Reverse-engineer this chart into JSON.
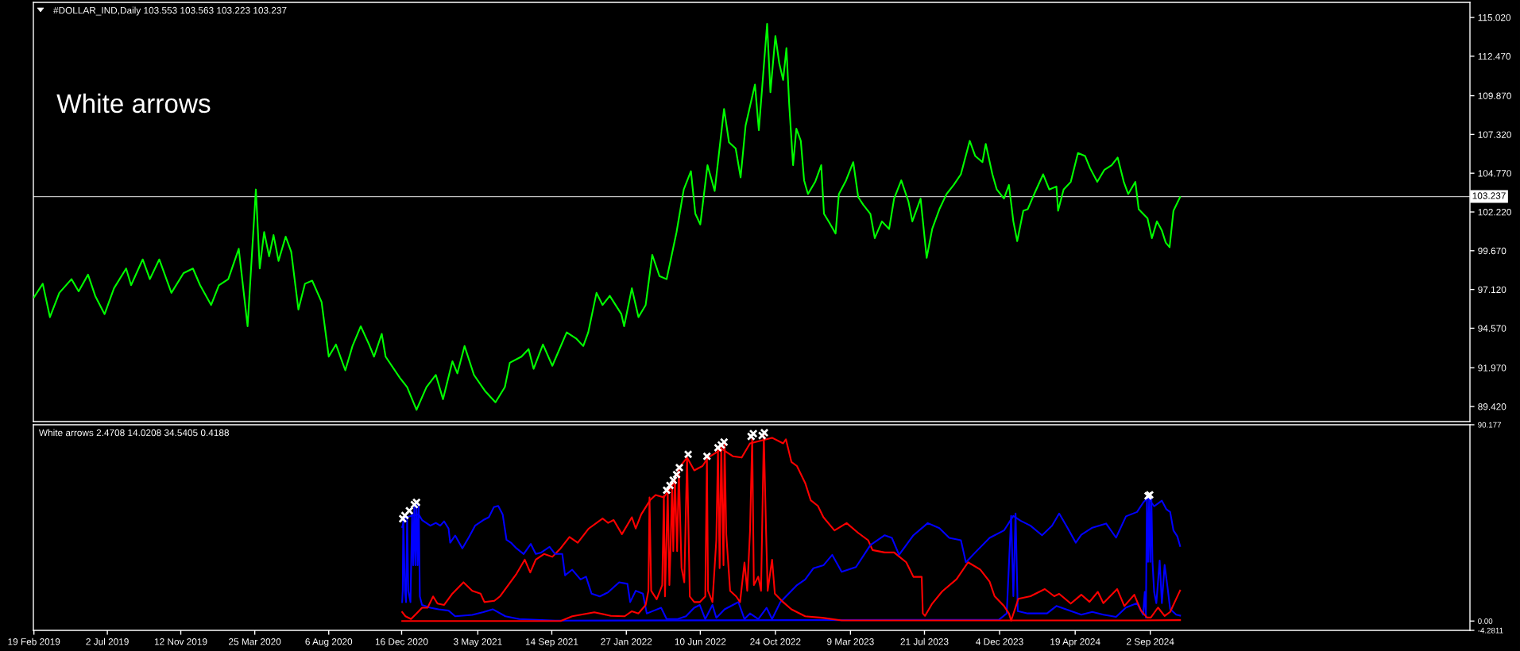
{
  "chart_data": [
    {
      "type": "line",
      "title": "#DOLLAR_IND,Daily 103.553 103.563 103.223 103.237",
      "annotations": [
        "White arrows"
      ],
      "x": [
        "2019-02-19",
        "2019-03-07",
        "2019-03-20",
        "2019-04-06",
        "2019-04-28",
        "2019-05-11",
        "2019-05-28",
        "2019-06-10",
        "2019-06-27",
        "2019-07-14",
        "2019-08-05",
        "2019-08-14",
        "2019-09-04",
        "2019-09-17",
        "2019-10-04",
        "2019-10-26",
        "2019-11-17",
        "2019-12-04",
        "2019-12-17",
        "2020-01-06",
        "2020-01-20",
        "2020-02-06",
        "2020-02-25",
        "2020-03-12",
        "2020-03-18",
        "2020-03-27",
        "2020-04-03",
        "2020-04-11",
        "2020-04-20",
        "2020-04-28",
        "2020-05-07",
        "2020-05-20",
        "2020-05-30",
        "2020-06-12",
        "2020-06-24",
        "2020-07-07",
        "2020-07-24",
        "2020-08-06",
        "2020-08-19",
        "2020-09-05",
        "2020-09-18",
        "2020-10-03",
        "2020-10-18",
        "2020-10-27",
        "2020-11-10",
        "2020-11-17",
        "2020-12-13",
        "2020-12-26",
        "2021-01-12",
        "2021-01-30",
        "2021-02-16",
        "2021-03-01",
        "2021-03-18",
        "2021-03-27",
        "2021-04-09",
        "2021-04-26",
        "2021-05-17",
        "2021-06-04",
        "2021-06-21",
        "2021-06-30",
        "2021-07-21",
        "2021-08-03",
        "2021-08-12",
        "2021-08-29",
        "2021-09-15",
        "2021-10-11",
        "2021-10-28",
        "2021-11-10",
        "2021-11-19",
        "2021-12-04",
        "2021-12-15",
        "2021-12-28",
        "2022-01-18",
        "2022-01-23",
        "2022-02-06",
        "2022-02-18",
        "2022-03-03",
        "2022-03-15",
        "2022-03-28",
        "2022-04-10",
        "2022-04-28",
        "2022-05-11",
        "2022-05-24",
        "2022-06-01",
        "2022-06-10",
        "2022-06-23",
        "2022-07-06",
        "2022-07-23",
        "2022-08-01",
        "2022-08-13",
        "2022-08-22",
        "2022-08-31",
        "2022-09-17",
        "2022-09-24",
        "2022-10-09",
        "2022-10-15",
        "2022-10-24",
        "2022-10-31",
        "2022-11-07",
        "2022-11-13",
        "2022-11-18",
        "2022-11-25",
        "2022-12-01",
        "2022-12-09",
        "2022-12-15",
        "2022-12-22",
        "2023-01-04",
        "2023-01-15",
        "2023-01-20",
        "2023-01-30",
        "2023-02-10",
        "2023-02-16",
        "2023-03-01",
        "2023-03-14",
        "2023-03-23",
        "2023-04-01",
        "2023-04-14",
        "2023-04-22",
        "2023-05-05",
        "2023-05-18",
        "2023-05-27",
        "2023-06-09",
        "2023-06-22",
        "2023-06-29",
        "2023-07-14",
        "2023-07-25",
        "2023-08-04",
        "2023-08-17",
        "2023-08-30",
        "2023-09-12",
        "2023-09-25",
        "2023-10-11",
        "2023-10-21",
        "2023-11-03",
        "2023-11-09",
        "2023-11-21",
        "2023-11-29",
        "2023-12-12",
        "2023-12-21",
        "2023-12-29",
        "2024-01-05",
        "2024-01-16",
        "2024-01-24",
        "2024-02-06",
        "2024-02-21",
        "2024-03-03",
        "2024-03-16",
        "2024-03-19",
        "2024-03-29",
        "2024-04-11",
        "2024-04-24",
        "2024-05-07",
        "2024-05-16",
        "2024-05-29",
        "2024-06-11",
        "2024-06-24",
        "2024-07-05",
        "2024-07-16",
        "2024-07-24",
        "2024-08-06",
        "2024-08-12",
        "2024-08-28",
        "2024-09-05",
        "2024-09-14",
        "2024-09-23",
        "2024-09-30",
        "2024-10-07",
        "2024-10-14",
        "2024-10-26"
      ],
      "series": [
        {
          "color": "#00ff00",
          "values": [
            96.6,
            97.5,
            95.3,
            96.9,
            97.8,
            97.0,
            98.1,
            96.7,
            95.5,
            97.2,
            98.5,
            97.4,
            99.1,
            97.8,
            99.1,
            96.9,
            98.2,
            98.5,
            97.4,
            96.1,
            97.4,
            97.8,
            99.8,
            94.7,
            98.3,
            103.7,
            98.5,
            100.9,
            99.3,
            100.7,
            99.0,
            100.6,
            99.6,
            95.8,
            97.5,
            97.7,
            96.3,
            92.7,
            93.5,
            91.8,
            93.4,
            94.7,
            93.5,
            92.7,
            94.2,
            92.7,
            91.3,
            90.7,
            89.2,
            90.7,
            91.5,
            89.9,
            92.4,
            91.6,
            93.4,
            91.5,
            90.4,
            89.7,
            90.7,
            92.3,
            92.7,
            93.2,
            91.9,
            93.5,
            92.1,
            94.3,
            93.9,
            93.4,
            94.3,
            96.9,
            96.1,
            96.7,
            95.5,
            94.7,
            97.2,
            95.3,
            96.1,
            99.4,
            98.0,
            97.8,
            100.9,
            103.7,
            104.9,
            102.1,
            101.4,
            105.3,
            103.6,
            109.0,
            106.8,
            106.4,
            104.5,
            107.9,
            110.6,
            107.6,
            114.6,
            110.1,
            113.8,
            112.0,
            110.9,
            113.0,
            109.3,
            105.3,
            107.7,
            106.9,
            104.3,
            103.4,
            104.2,
            105.3,
            102.1,
            101.5,
            100.8,
            103.4,
            104.3,
            105.5,
            103.2,
            102.7,
            102.1,
            100.5,
            101.6,
            101.1,
            103.1,
            104.3,
            102.9,
            101.6,
            103.1,
            99.2,
            101.1,
            102.4,
            103.4,
            104.0,
            104.7,
            106.9,
            105.9,
            105.5,
            106.7,
            104.7,
            103.7,
            103.1,
            104.0,
            101.6,
            100.3,
            102.3,
            102.4,
            103.5,
            104.7,
            103.7,
            103.9,
            102.3,
            103.7,
            104.2,
            106.1,
            105.9,
            105.1,
            104.2,
            105.0,
            105.3,
            105.8,
            104.2,
            103.4,
            104.2,
            102.4,
            101.8,
            100.5,
            101.6,
            101.0,
            100.2,
            99.9,
            102.3,
            103.2
          ]
        }
      ],
      "xlim": [
        "2019-02-18",
        "2026-04-04"
      ],
      "ylim": [
        88.43,
        116.01
      ],
      "yticks": [
        {
          "value": 89.42,
          "label": "89.420"
        },
        {
          "value": 91.97,
          "label": "91.970"
        },
        {
          "value": 94.57,
          "label": "94.570"
        },
        {
          "value": 97.12,
          "label": "97.120"
        },
        {
          "value": 99.67,
          "label": "99.670"
        },
        {
          "value": 102.22,
          "label": "102.220"
        },
        {
          "value": 104.77,
          "label": "104.770"
        },
        {
          "value": 107.32,
          "label": "107.320"
        },
        {
          "value": 109.87,
          "label": "109.870"
        },
        {
          "value": 112.47,
          "label": "112.470"
        },
        {
          "value": 115.02,
          "label": "115.020"
        }
      ],
      "ref_lines": [
        {
          "axis": "y",
          "value": 103.237,
          "label": "103.237",
          "color": "#c0c0c0"
        }
      ],
      "tick_labels": "y",
      "marker": "none",
      "line_style": "solid"
    },
    {
      "type": "line",
      "title": "White arrows 2.4708 14.0208 34.5405 0.4188",
      "series": [
        {
          "color": "#0000ff",
          "x": [
            "2020-12-17",
            "2020-12-18",
            "2020-12-19",
            "2020-12-22",
            "2020-12-24",
            "2020-12-26",
            "2020-12-28",
            "2021-01-01",
            "2021-01-04",
            "2021-01-06",
            "2021-01-08",
            "2021-01-10",
            "2021-01-12",
            "2021-01-14",
            "2021-01-16",
            "2021-01-18",
            "2021-01-22",
            "2021-02-06",
            "2021-02-21",
            "2021-03-11",
            "2021-03-23",
            "2021-04-23",
            "2021-05-13",
            "2021-05-30",
            "2021-06-22",
            "2021-07-17",
            "2021-09-20",
            "2023-12-03",
            "2023-12-17",
            "2023-12-25",
            "2023-12-29",
            "2024-01-02",
            "2024-01-06",
            "2024-01-24",
            "2024-02-28",
            "2024-03-16",
            "2024-04-30",
            "2024-05-20",
            "2024-06-09",
            "2024-07-02",
            "2024-07-20",
            "2024-08-09",
            "2024-08-20",
            "2024-08-23",
            "2024-08-25",
            "2024-08-27",
            "2024-08-29",
            "2024-08-31",
            "2024-09-02",
            "2024-09-04",
            "2024-09-06",
            "2024-09-09",
            "2024-09-13",
            "2024-09-19",
            "2024-09-23",
            "2024-09-28",
            "2024-10-03",
            "2024-10-08",
            "2024-10-19",
            "2024-10-26"
          ],
          "values": [
            8.7,
            13.9,
            47.7,
            13.9,
            8.7,
            47.7,
            13.9,
            8.7,
            49.0,
            25.6,
            52.9,
            25.6,
            54.2,
            25.6,
            52.9,
            11.3,
            7.4,
            6.1,
            5.4,
            4.8,
            2.2,
            2.8,
            4.1,
            5.4,
            2.2,
            0.9,
            0.2,
            0.6,
            3.5,
            48.3,
            11.4,
            49.4,
            4.6,
            3.5,
            3.5,
            6.9,
            2.9,
            4.2,
            2.9,
            1.9,
            6.2,
            8.2,
            2.9,
            13.4,
            1.6,
            56.6,
            27.2,
            57.3,
            27.2,
            56.6,
            27.2,
            13.4,
            8.2,
            27.8,
            8.2,
            25.8,
            16.0,
            5.5,
            2.9,
            2.5
          ]
        },
        {
          "color": "#ff0000",
          "x": [
            "2020-12-17",
            "2020-12-23",
            "2021-01-02",
            "2021-01-12",
            "2021-01-22",
            "2021-02-01",
            "2021-02-11",
            "2021-02-19",
            "2021-03-03",
            "2021-03-18",
            "2021-04-07",
            "2021-04-23",
            "2021-05-08",
            "2021-05-15",
            "2021-06-02",
            "2021-06-12",
            "2021-06-27",
            "2021-07-12",
            "2021-07-27",
            "2021-08-06",
            "2021-08-16",
            "2021-08-31",
            "2021-09-15",
            "2021-09-30",
            "2021-10-16",
            "2021-10-31",
            "2021-11-20",
            "2021-12-15",
            "2021-12-25",
            "2022-01-04",
            "2022-01-19",
            "2022-02-06",
            "2022-02-13",
            "2022-02-23",
            "2022-03-11",
            "2022-03-21",
            "2022-04-05",
            "2022-04-10",
            "2022-04-20",
            "2022-05-05",
            "2022-05-17",
            "2022-05-30",
            "2022-06-14",
            "2022-06-24",
            "2022-07-19",
            "2022-08-08",
            "2022-08-24",
            "2022-09-08",
            "2022-09-28",
            "2022-10-18",
            "2022-11-07",
            "2022-11-12",
            "2022-11-22",
            "2022-12-02",
            "2022-12-17",
            "2022-12-27",
            "2023-01-09",
            "2023-01-19",
            "2023-02-08",
            "2023-03-02",
            "2023-03-23",
            "2023-04-10",
            "2023-04-18",
            "2023-05-10",
            "2023-05-27",
            "2023-06-18",
            "2023-07-01",
            "2023-07-16",
            "2023-07-18",
            "2023-07-22",
            "2023-08-04",
            "2023-08-22",
            "2023-09-17",
            "2023-10-08",
            "2023-10-30",
            "2023-11-16",
            "2023-11-25",
            "2023-12-12",
            "2023-12-21",
            "2023-12-25",
            "2024-01-07",
            "2024-01-29",
            "2024-02-24",
            "2024-03-12",
            "2024-03-21",
            "2024-04-11",
            "2024-04-30",
            "2024-05-15",
            "2024-05-30",
            "2024-06-09",
            "2024-07-04",
            "2024-07-17",
            "2024-08-04",
            "2024-08-16",
            "2024-08-27",
            "2024-09-03",
            "2024-09-16",
            "2024-09-28",
            "2024-10-08",
            "2024-10-26"
          ],
          "values": [
            4.1,
            2.2,
            0.9,
            3.5,
            6.1,
            6.1,
            11.3,
            8.0,
            7.4,
            12.6,
            17.8,
            13.9,
            12.6,
            8.7,
            9.3,
            11.3,
            16.5,
            21.7,
            28.2,
            22.3,
            28.2,
            30.8,
            29.5,
            33.4,
            38.6,
            36.0,
            42.5,
            47.1,
            45.1,
            46.4,
            39.9,
            47.7,
            42.5,
            49.0,
            55.5,
            57.9,
            56.8,
            58.8,
            62.1,
            71.2,
            75.1,
            69.2,
            71.2,
            75.1,
            79.0,
            75.7,
            75.1,
            81.6,
            82.9,
            84.2,
            81.6,
            83.5,
            73.1,
            71.2,
            63.4,
            55.5,
            52.9,
            47.7,
            41.6,
            45.0,
            40.5,
            37.1,
            32.6,
            31.5,
            31.5,
            27.0,
            20.3,
            20.3,
            3.5,
            2.4,
            8.0,
            13.6,
            19.2,
            27.0,
            23.7,
            18.1,
            11.4,
            6.9,
            3.5,
            0.2,
            10.2,
            11.4,
            14.7,
            11.4,
            12.5,
            8.0,
            12.1,
            8.8,
            13.4,
            8.2,
            14.7,
            6.9,
            12.1,
            4.9,
            1.6,
            1.6,
            6.2,
            2.3,
            4.2,
            14.0
          ]
        },
        {
          "color": "#0000ff",
          "x": [
            "2020-12-17",
            "2020-12-23",
            "2021-01-16",
            "2021-01-22",
            "2021-02-06",
            "2021-02-16",
            "2021-02-24",
            "2021-03-03",
            "2021-03-11",
            "2021-03-14",
            "2021-03-23",
            "2021-04-05",
            "2021-04-17",
            "2021-04-28",
            "2021-05-13",
            "2021-05-23",
            "2021-06-01",
            "2021-06-09",
            "2021-06-17",
            "2021-06-24",
            "2021-07-02",
            "2021-07-12",
            "2021-07-25",
            "2021-08-07",
            "2021-08-16",
            "2021-08-26",
            "2021-09-10",
            "2021-09-20",
            "2021-10-03",
            "2021-10-08",
            "2021-10-21",
            "2021-11-05",
            "2021-11-15",
            "2021-11-25",
            "2021-12-10",
            "2021-12-25",
            "2022-01-14",
            "2022-01-29",
            "2022-02-03",
            "2022-02-13",
            "2022-02-26",
            "2022-03-05",
            "2022-03-18",
            "2022-03-31",
            "2022-04-10",
            "2022-04-30",
            "2022-05-15",
            "2022-05-30",
            "2022-06-09",
            "2022-06-19",
            "2022-07-02",
            "2022-07-09",
            "2022-07-24",
            "2022-08-08",
            "2022-08-18",
            "2022-08-29",
            "2022-09-08",
            "2022-09-23",
            "2022-10-08",
            "2022-10-18",
            "2022-11-02",
            "2022-11-17",
            "2022-12-02",
            "2022-12-17",
            "2023-01-01",
            "2023-01-19",
            "2023-02-04",
            "2023-02-21",
            "2023-03-19",
            "2023-04-14",
            "2023-05-10",
            "2023-05-23",
            "2023-06-05",
            "2023-07-01",
            "2023-07-27",
            "2023-08-17",
            "2023-09-04",
            "2023-09-25",
            "2023-10-04",
            "2023-10-21",
            "2023-11-16",
            "2023-12-12",
            "2023-12-29",
            "2024-01-11",
            "2024-01-29",
            "2024-02-19",
            "2024-03-08",
            "2024-03-21",
            "2024-04-03",
            "2024-04-20",
            "2024-04-30",
            "2024-05-20",
            "2024-06-14",
            "2024-07-02",
            "2024-07-20",
            "2024-08-09",
            "2024-08-21",
            "2024-08-29",
            "2024-09-09",
            "2024-09-23",
            "2024-10-01",
            "2024-10-08",
            "2024-10-14",
            "2024-10-21",
            "2024-10-26"
          ],
          "values": [
            43.2,
            47.7,
            49.0,
            46.4,
            43.8,
            45.1,
            43.8,
            45.8,
            42.5,
            36.0,
            39.3,
            33.4,
            38.6,
            43.8,
            46.4,
            47.7,
            52.3,
            52.9,
            49.0,
            37.3,
            36.0,
            33.4,
            30.8,
            35.4,
            30.8,
            31.5,
            34.1,
            30.8,
            30.8,
            21.0,
            23.6,
            19.1,
            20.4,
            12.6,
            11.3,
            13.2,
            17.8,
            17.1,
            8.7,
            13.9,
            12.6,
            3.5,
            4.8,
            6.1,
            0.9,
            0.9,
            2.2,
            6.1,
            7.4,
            0.9,
            7.4,
            1.5,
            5.4,
            7.4,
            8.7,
            0.9,
            3.5,
            0.9,
            6.1,
            0.9,
            8.7,
            12.6,
            16.5,
            19.1,
            24.3,
            25.6,
            30.4,
            22.6,
            24.8,
            34.9,
            39.4,
            38.2,
            30.4,
            39.4,
            45.0,
            42.7,
            38.2,
            37.1,
            27.0,
            31.5,
            38.2,
            41.6,
            48.3,
            46.1,
            43.8,
            39.4,
            43.8,
            49.4,
            43.8,
            36.0,
            39.6,
            42.9,
            44.8,
            38.3,
            48.1,
            50.1,
            54.7,
            56.6,
            52.7,
            55.3,
            51.4,
            50.1,
            41.6,
            38.9,
            34.5
          ]
        },
        {
          "color": "#ff0000",
          "x": [
            "2020-12-17",
            "2021-09-30",
            "2021-10-21",
            "2021-11-30",
            "2021-12-30",
            "2022-01-24",
            "2022-02-06",
            "2022-02-18",
            "2022-03-03",
            "2022-03-08",
            "2022-03-10",
            "2022-03-13",
            "2022-03-23",
            "2022-04-02",
            "2022-04-05",
            "2022-04-07",
            "2022-04-12",
            "2022-04-15",
            "2022-04-17",
            "2022-04-20",
            "2022-04-22",
            "2022-04-25",
            "2022-04-29",
            "2022-05-02",
            "2022-05-07",
            "2022-05-12",
            "2022-05-17",
            "2022-05-22",
            "2022-05-30",
            "2022-06-09",
            "2022-06-19",
            "2022-06-22",
            "2022-06-24",
            "2022-07-02",
            "2022-07-09",
            "2022-07-12",
            "2022-07-15",
            "2022-07-18",
            "2022-07-22",
            "2022-07-24",
            "2022-07-27",
            "2022-08-03",
            "2022-08-14",
            "2022-08-21",
            "2022-08-29",
            "2022-09-03",
            "2022-09-08",
            "2022-09-12",
            "2022-09-15",
            "2022-09-23",
            "2022-09-28",
            "2022-10-03",
            "2022-10-07",
            "2022-10-10",
            "2022-10-18",
            "2022-10-23",
            "2022-11-07",
            "2022-11-22",
            "2022-12-17",
            "2023-01-17",
            "2023-02-21",
            "2024-08-11",
            "2024-10-26"
          ],
          "values": [
            0.0,
            0.0,
            2.2,
            4.0,
            2.4,
            2.2,
            4.5,
            3.5,
            7.4,
            13.9,
            56.8,
            13.9,
            10.0,
            16.5,
            57.5,
            11.3,
            59.4,
            16.5,
            32.1,
            63.4,
            32.1,
            66.0,
            32.1,
            69.9,
            24.3,
            17.8,
            75.1,
            11.3,
            8.7,
            8.7,
            11.3,
            75.1,
            13.9,
            8.7,
            37.3,
            79.0,
            24.3,
            80.3,
            25.6,
            81.6,
            39.9,
            13.9,
            11.3,
            8.7,
            26.9,
            13.9,
            41.2,
            84.2,
            16.5,
            20.4,
            13.9,
            85.5,
            42.5,
            13.9,
            28.2,
            12.6,
            8.7,
            5.4,
            2.2,
            1.5,
            0.3,
            0.3,
            0.4
          ]
        },
        {
          "type": "scatter",
          "marker": "cross",
          "color": "#ffffff",
          "x": [
            "2020-12-18",
            "2020-12-22",
            "2020-12-30",
            "2021-01-08",
            "2021-01-12",
            "2022-04-10",
            "2022-04-16",
            "2022-04-22",
            "2022-04-28",
            "2022-05-03",
            "2022-05-19",
            "2022-06-22",
            "2022-07-12",
            "2022-07-18",
            "2022-07-23",
            "2022-09-10",
            "2022-09-14",
            "2022-09-30",
            "2022-10-04",
            "2024-08-29",
            "2024-09-01"
          ],
          "values": [
            47.0,
            48.5,
            50.7,
            53.5,
            54.5,
            60.1,
            62.3,
            64.7,
            67.3,
            70.5,
            76.6,
            75.7,
            79.6,
            80.9,
            82.2,
            84.8,
            86.1,
            85.2,
            86.5,
            57.5,
            58.0
          ]
        }
      ],
      "xlim": [
        "2019-02-18",
        "2026-04-04"
      ],
      "ylim": [
        -4.2811,
        90.177
      ],
      "xticks": [
        {
          "value": "2019-02-19",
          "label": "19 Feb 2019"
        },
        {
          "value": "2019-07-02",
          "label": "2 Jul 2019"
        },
        {
          "value": "2019-11-12",
          "label": "12 Nov 2019"
        },
        {
          "value": "2020-03-25",
          "label": "25 Mar 2020"
        },
        {
          "value": "2020-08-06",
          "label": "6 Aug 2020"
        },
        {
          "value": "2020-12-16",
          "label": "16 Dec 2020"
        },
        {
          "value": "2021-05-03",
          "label": "3 May 2021"
        },
        {
          "value": "2021-09-14",
          "label": "14 Sep 2021"
        },
        {
          "value": "2022-01-27",
          "label": "27 Jan 2022"
        },
        {
          "value": "2022-06-10",
          "label": "10 Jun 2022"
        },
        {
          "value": "2022-10-24",
          "label": "24 Oct 2022"
        },
        {
          "value": "2023-03-09",
          "label": "9 Mar 2023"
        },
        {
          "value": "2023-07-21",
          "label": "21 Jul 2023"
        },
        {
          "value": "2023-12-04",
          "label": "4 Dec 2023"
        },
        {
          "value": "2024-04-19",
          "label": "19 Apr 2024"
        },
        {
          "value": "2024-09-02",
          "label": "2 Sep 2024"
        }
      ],
      "yticks": [
        {
          "value": 90.177,
          "label": "90.177"
        },
        {
          "value": 0,
          "label": "0.00"
        },
        {
          "value": -4.2811,
          "label": "-4.2811"
        }
      ],
      "marker": "none",
      "line_style": "solid"
    }
  ]
}
